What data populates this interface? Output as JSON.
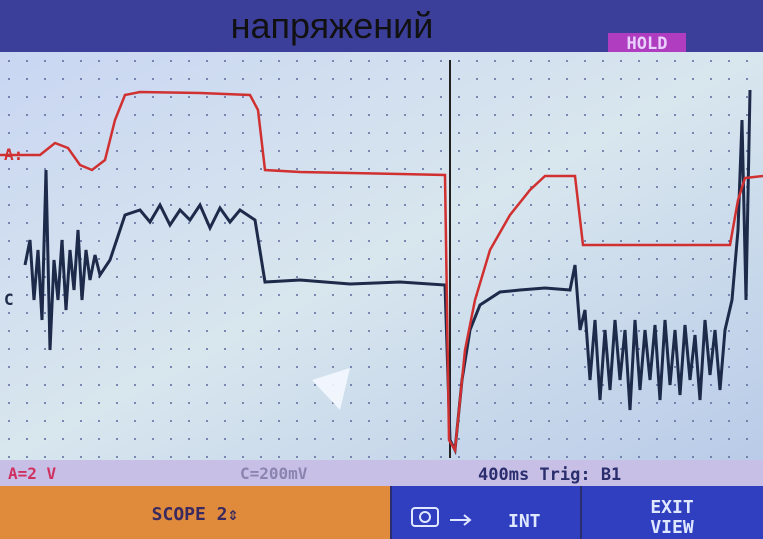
{
  "header": {
    "title": "напряжений",
    "status": "HOLD"
  },
  "screen": {
    "channel_a_marker": "A:",
    "channel_c_marker": "C"
  },
  "status_bar": {
    "channel_a": "A=2 V",
    "channel_c": "C=200mV",
    "timebase": "400ms Trig: B1"
  },
  "softkeys": {
    "f1": "SCOPE 2⇕",
    "f2": "INT",
    "f3": {
      "lines": [
        "EXIT",
        "VIEW"
      ]
    }
  }
}
